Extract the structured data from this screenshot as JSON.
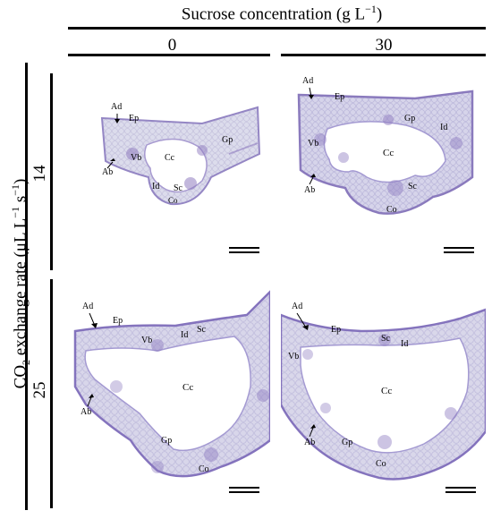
{
  "figure": {
    "header": {
      "text": "Sucrose concentration (g L",
      "sup": "−1",
      "close": ")"
    },
    "columns": [
      {
        "label": "0"
      },
      {
        "label": "30"
      }
    ],
    "row_axis": {
      "text_pre": "CO",
      "sub": "2",
      "text_mid": " exchange rate (μL L",
      "sup1": "−1",
      "mid2": " s",
      "sup2": "−1",
      "close": ")"
    },
    "rows": [
      {
        "label": "14"
      },
      {
        "label": "25"
      }
    ],
    "panels": [
      {
        "id": "p14-0",
        "labels": {
          "ad": "Ad",
          "ep": "Ep",
          "gp": "Gp",
          "vb": "Vb",
          "cc": "Cc",
          "ab": "Ab",
          "id": "Id",
          "sc": "Sc",
          "co": "Co"
        }
      },
      {
        "id": "p14-30",
        "labels": {
          "ad": "Ad",
          "ep": "Ep",
          "gp": "Gp",
          "id": "Id",
          "vb": "Vb",
          "cc": "Cc",
          "ab": "Ab",
          "sc": "Sc",
          "co": "Co"
        }
      },
      {
        "id": "p25-0",
        "labels": {
          "ad": "Ad",
          "ep": "Ep",
          "vb": "Vb",
          "id": "Id",
          "sc": "Sc",
          "cc": "Cc",
          "ab": "Ab",
          "gp": "Gp",
          "co": "Co"
        }
      },
      {
        "id": "p25-30",
        "labels": {
          "ad": "Ad",
          "ep": "Ep",
          "sc": "Sc",
          "id": "Id",
          "vb": "Vb",
          "cc": "Cc",
          "ab": "Ab",
          "gp": "Gp",
          "co": "Co"
        }
      }
    ],
    "colors": {
      "tissue": "#d9d8ea",
      "tissue_dark": "#b9b6d9",
      "stain": "#7a68b4",
      "lumen": "#ffffff"
    }
  }
}
